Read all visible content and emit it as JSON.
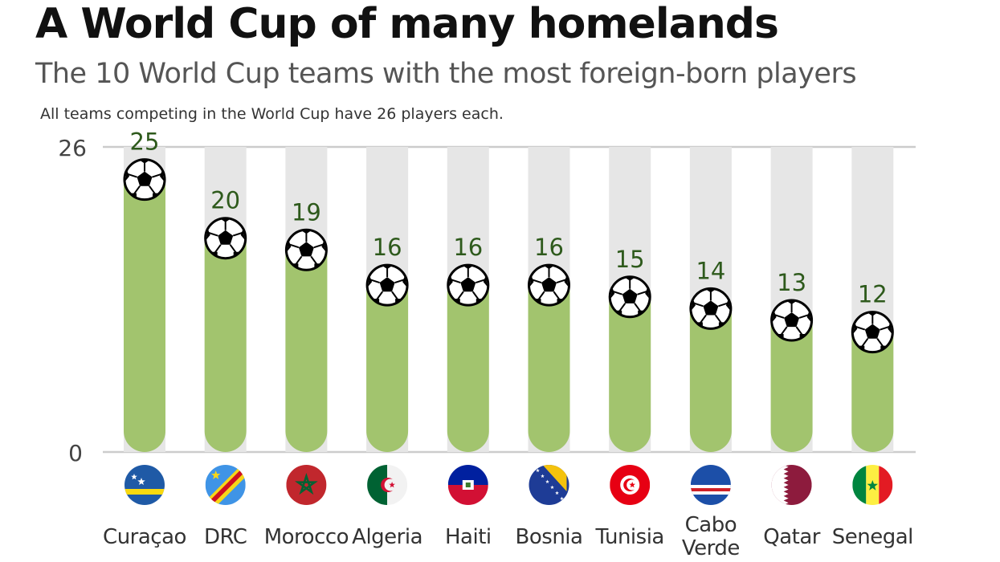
{
  "header": {
    "title": "A World Cup of many homelands",
    "subtitle": "The 10 World Cup teams with the most foreign-born players",
    "note": "All teams competing in the World Cup have 26 players each."
  },
  "colors": {
    "bar": "#a2c46e",
    "track": "#e6e6e6",
    "value_text": "#2e5a1c",
    "gridline": "#cccccc"
  },
  "chart_data": {
    "type": "bar",
    "categories": [
      "Curaçao",
      "DRC",
      "Morocco",
      "Algeria",
      "Haiti",
      "Bosnia",
      "Tunisia",
      "Cabo Verde",
      "Qatar",
      "Senegal"
    ],
    "values": [
      25,
      20,
      19,
      16,
      16,
      16,
      15,
      14,
      13,
      12
    ],
    "max_value": 26,
    "ylim": [
      0,
      26
    ],
    "yticks": [
      "0",
      "26"
    ],
    "marker_icon": "soccer-ball-icon",
    "category_icons": [
      "curacao-flag-icon",
      "drc-flag-icon",
      "morocco-flag-icon",
      "algeria-flag-icon",
      "haiti-flag-icon",
      "bosnia-flag-icon",
      "tunisia-flag-icon",
      "cabo-verde-flag-icon",
      "qatar-flag-icon",
      "senegal-flag-icon"
    ]
  }
}
